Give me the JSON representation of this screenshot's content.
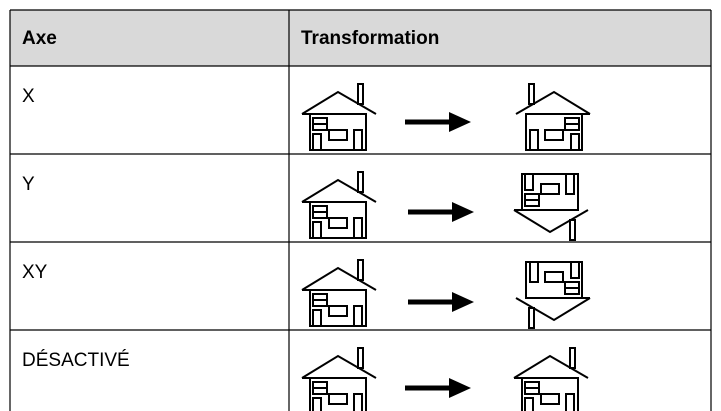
{
  "table": {
    "header": [
      "Axe",
      "Transformation"
    ],
    "rows": [
      [
        "X"
      ],
      [
        "Y"
      ],
      [
        "XY"
      ],
      [
        "DÉSACTIVÉ"
      ]
    ]
  }
}
